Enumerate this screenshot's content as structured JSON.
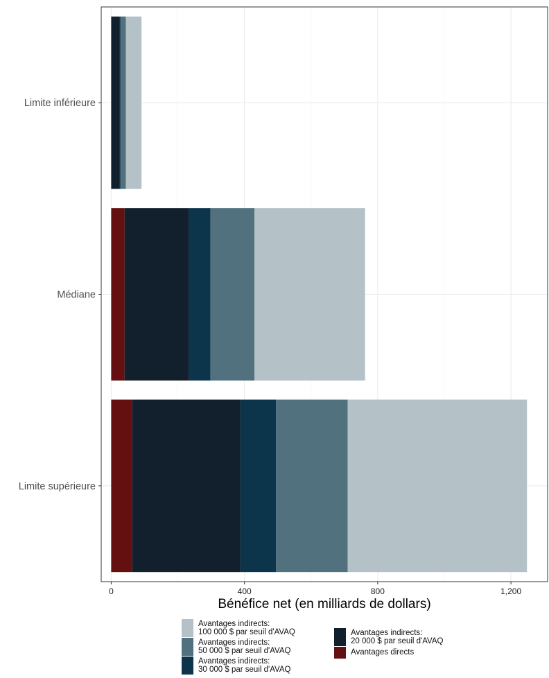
{
  "chart_data": {
    "type": "bar",
    "orientation": "horizontal",
    "stacked": true,
    "title": "",
    "xlabel": "Bénéfice net (en milliards de dollars)",
    "ylabel": "",
    "xlim": [
      -30,
      1310
    ],
    "x_ticks": [
      0,
      400,
      800,
      1200
    ],
    "x_tick_labels": [
      "0",
      "400",
      "800",
      "1,200"
    ],
    "grid": true,
    "legend_position": "bottom",
    "categories": [
      "Limite inférieure",
      "Médiane",
      "Limite supérieure"
    ],
    "series": [
      {
        "name": "Avantages directs",
        "color": "#641010",
        "values": [
          0,
          40,
          63
        ]
      },
      {
        "name": "Avantages indirects:\n20 000 $ par seuil d'AVAQ",
        "color": "#11202C",
        "values": [
          25,
          193,
          325
        ]
      },
      {
        "name": "Avantages indirects:\n30 000 $ par seuil d'AVAQ",
        "color": "#0C344A",
        "values": [
          3,
          65,
          107
        ]
      },
      {
        "name": "Avantages indirects:\n50 000 $ par seuil d'AVAQ",
        "color": "#51717E",
        "values": [
          16,
          132,
          215
        ]
      },
      {
        "name": "Avantages indirects:\n100 000 $ par seuil d'AVAQ",
        "color": "#B4C1C6",
        "values": [
          47,
          332,
          538
        ]
      }
    ]
  },
  "legend": {
    "items": [
      {
        "label": "Avantages indirects:\n100 000 $ par seuil d'AVAQ",
        "color": "#B4C1C6"
      },
      {
        "label": "Avantages indirects:\n50 000 $ par seuil d'AVAQ",
        "color": "#51717E"
      },
      {
        "label": "Avantages indirects:\n30 000 $ par seuil d'AVAQ",
        "color": "#0C344A"
      },
      {
        "label": "Avantages indirects:\n20 000 $ par seuil d'AVAQ",
        "color": "#11202C"
      },
      {
        "label": "Avantages directs",
        "color": "#641010"
      }
    ]
  }
}
